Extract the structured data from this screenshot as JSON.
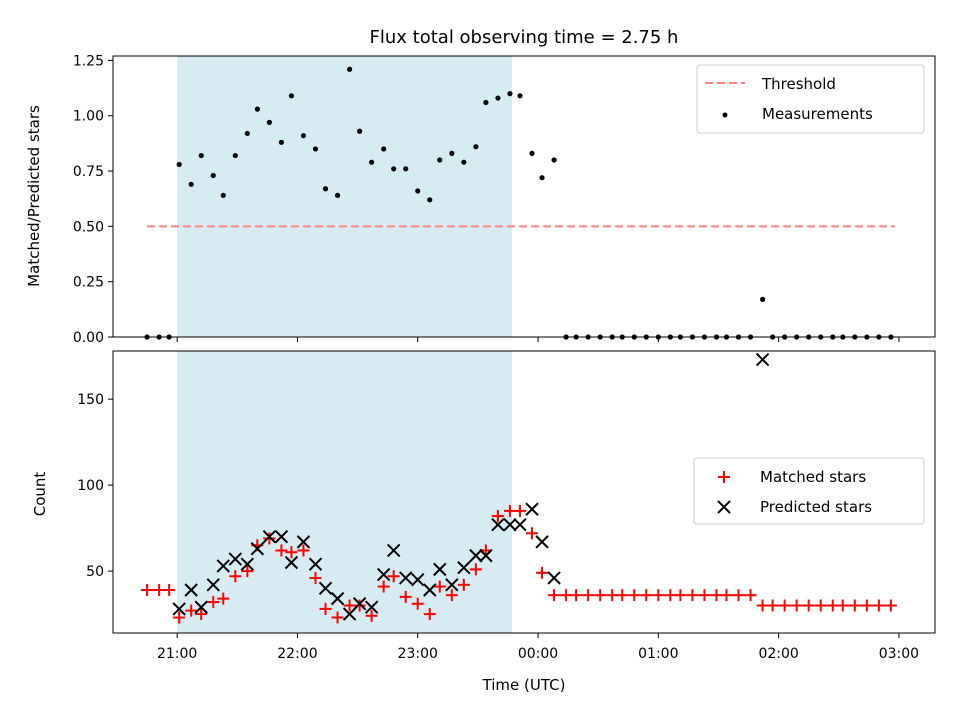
{
  "chart_data": [
    {
      "type": "scatter",
      "title": "Flux total observing time = 2.75 h",
      "xlabel": "",
      "ylabel": "Matched/Predicted stars",
      "ylim": [
        0,
        1.27
      ],
      "yticks": [
        "0.00",
        "0.25",
        "0.50",
        "0.75",
        "1.00",
        "1.25"
      ],
      "ytick_values": [
        0,
        0.25,
        0.5,
        0.75,
        1.0,
        1.25
      ],
      "x_unit": "minutes after 21:00 UTC",
      "xlim": [
        -32,
        378
      ],
      "shaded_interval": [
        0,
        167
      ],
      "shade_color": "#add8e6",
      "legend_position": "top-right",
      "threshold": {
        "name": "Threshold",
        "value": 0.5,
        "x_range": [
          -15,
          358
        ],
        "color": "#ff8080",
        "style": "dashed"
      },
      "series": [
        {
          "name": "Measurements",
          "marker": "dot",
          "color": "#000000",
          "x": [
            -15,
            -9,
            -4,
            1,
            7,
            12,
            18,
            23,
            29,
            35,
            40,
            46,
            52,
            57,
            63,
            69,
            74,
            80,
            86,
            91,
            97,
            103,
            108,
            114,
            120,
            126,
            131,
            137,
            143,
            149,
            154,
            160,
            166,
            171,
            177,
            182,
            188,
            194,
            199,
            205,
            211,
            217,
            222,
            228,
            234,
            240,
            246,
            251,
            257,
            263,
            269,
            274,
            280,
            286,
            292,
            297,
            303,
            309,
            315,
            321,
            327,
            332,
            338,
            344,
            350,
            356
          ],
          "y": [
            0,
            0,
            0,
            0.78,
            0.69,
            0.82,
            0.73,
            0.64,
            0.82,
            0.92,
            1.03,
            0.97,
            0.88,
            1.09,
            0.91,
            0.85,
            0.67,
            0.64,
            1.21,
            0.93,
            0.79,
            0.85,
            0.76,
            0.76,
            0.66,
            0.62,
            0.8,
            0.83,
            0.79,
            0.86,
            1.06,
            1.08,
            1.1,
            1.09,
            0.83,
            0.72,
            0.8,
            0,
            0,
            0,
            0,
            0,
            0,
            0,
            0,
            0,
            0,
            0,
            0,
            0,
            0,
            0,
            0,
            0,
            0.17,
            0,
            0,
            0,
            0,
            0,
            0,
            0,
            0,
            0,
            0,
            0
          ]
        }
      ]
    },
    {
      "type": "scatter",
      "title": "",
      "xlabel": "Time (UTC)",
      "ylabel": "Count",
      "ylim": [
        14,
        178
      ],
      "yticks": [
        "50",
        "100",
        "150"
      ],
      "ytick_values": [
        50,
        100,
        150
      ],
      "xticks": [
        "21:00",
        "22:00",
        "23:00",
        "00:00",
        "01:00",
        "02:00",
        "03:00"
      ],
      "xtick_values": [
        0,
        60,
        120,
        180,
        240,
        300,
        360
      ],
      "x_unit": "minutes after 21:00 UTC",
      "xlim": [
        -32,
        378
      ],
      "shaded_interval": [
        0,
        167
      ],
      "shade_color": "#add8e6",
      "legend_position": "center-right",
      "series": [
        {
          "name": "Matched stars",
          "marker": "plus",
          "color": "#ff0000",
          "x": [
            -15,
            -9,
            -4,
            1,
            7,
            12,
            18,
            23,
            29,
            35,
            40,
            46,
            52,
            57,
            63,
            69,
            74,
            80,
            86,
            91,
            97,
            103,
            108,
            114,
            120,
            126,
            131,
            137,
            143,
            149,
            154,
            160,
            166,
            171,
            177,
            182,
            188,
            194,
            199,
            205,
            211,
            217,
            222,
            228,
            234,
            240,
            246,
            251,
            257,
            263,
            269,
            274,
            280,
            286,
            292,
            297,
            303,
            309,
            315,
            321,
            327,
            332,
            338,
            344,
            350,
            356
          ],
          "y": [
            39,
            39,
            39,
            23,
            27,
            25,
            32,
            34,
            47,
            50,
            65,
            69,
            62,
            61,
            62,
            46,
            28,
            23,
            30,
            30,
            24,
            41,
            47,
            35,
            31,
            25,
            41,
            36,
            42,
            51,
            62,
            82,
            85,
            85,
            72,
            49,
            36,
            36,
            36,
            36,
            36,
            36,
            36,
            36,
            36,
            36,
            36,
            36,
            36,
            36,
            36,
            36,
            36,
            36,
            30,
            30,
            30,
            30,
            30,
            30,
            30,
            30,
            30,
            30,
            30,
            30
          ]
        },
        {
          "name": "Predicted stars",
          "marker": "x",
          "color": "#000000",
          "x": [
            1,
            7,
            12,
            18,
            23,
            29,
            35,
            40,
            46,
            52,
            57,
            63,
            69,
            74,
            80,
            86,
            91,
            97,
            103,
            108,
            114,
            120,
            126,
            131,
            137,
            143,
            149,
            154,
            160,
            166,
            171,
            177,
            182,
            188,
            292
          ],
          "y": [
            28,
            39,
            29,
            42,
            53,
            57,
            54,
            63,
            70,
            70,
            55,
            67,
            54,
            40,
            34,
            25,
            31,
            29,
            48,
            62,
            46,
            45,
            39,
            51,
            42,
            52,
            59,
            59,
            77,
            77,
            77,
            86,
            67,
            46,
            173
          ]
        }
      ]
    }
  ]
}
